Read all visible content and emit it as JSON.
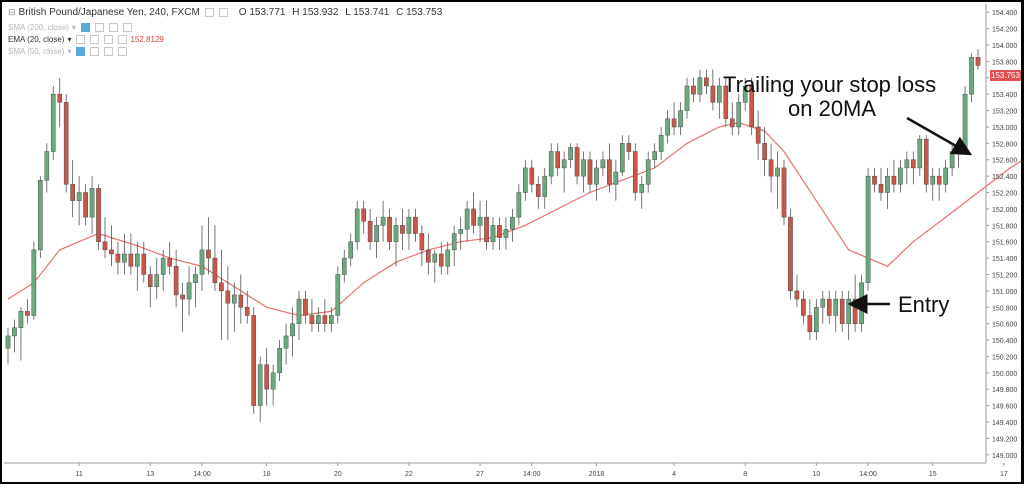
{
  "header": {
    "symbol": "British Pound/Japanese Yen, 240, FXCM",
    "open": "O 153.771",
    "high": "H 153.932",
    "low": "L 153.741",
    "close": "C 153.753",
    "ind1_label": "SMA (200, close)",
    "ind2_label": "EMA (20, close)",
    "ind2_value": "152.8129",
    "ind3_label": "SMA (50, close)"
  },
  "price_badge": "153.753",
  "annotations": {
    "trailing_line1": "Trailing your stop loss",
    "trailing_line2": "on 20MA",
    "entry": "Entry"
  },
  "colors": {
    "up": "#6aa97d",
    "down": "#c8574a",
    "ema": "#e8706a",
    "badge": "#e05050"
  },
  "chart_data": {
    "type": "candlestick",
    "symbol": "GBPJPY",
    "timeframe": "240",
    "ylim": [
      148.9,
      154.5
    ],
    "yticks": [
      "154.400",
      "154.200",
      "154.000",
      "153.800",
      "153.600",
      "153.400",
      "153.200",
      "153.000",
      "152.800",
      "152.600",
      "152.400",
      "152.200",
      "152.000",
      "151.800",
      "151.600",
      "151.400",
      "151.200",
      "151.000",
      "150.800",
      "150.600",
      "150.400",
      "150.200",
      "150.000",
      "149.800",
      "149.600",
      "149.400",
      "149.200",
      "149.000"
    ],
    "xticks": [
      {
        "label": "11",
        "i": 11
      },
      {
        "label": "13",
        "i": 22
      },
      {
        "label": "14:00",
        "i": 30
      },
      {
        "label": "18",
        "i": 40
      },
      {
        "label": "20",
        "i": 51
      },
      {
        "label": "22",
        "i": 62
      },
      {
        "label": "27",
        "i": 73
      },
      {
        "label": "14:00",
        "i": 81
      },
      {
        "label": "2018",
        "i": 91
      },
      {
        "label": "4",
        "i": 103
      },
      {
        "label": "8",
        "i": 114
      },
      {
        "label": "10",
        "i": 125
      },
      {
        "label": "14:00",
        "i": 133
      },
      {
        "label": "15",
        "i": 143
      },
      {
        "label": "17",
        "i": 154
      },
      {
        "label": "14:00",
        "i": 162
      }
    ],
    "candles": [
      [
        150.3,
        150.55,
        150.1,
        150.45
      ],
      [
        150.45,
        150.65,
        150.25,
        150.55
      ],
      [
        150.55,
        150.8,
        150.15,
        150.75
      ],
      [
        150.75,
        150.9,
        150.6,
        150.7
      ],
      [
        150.7,
        151.6,
        150.65,
        151.5
      ],
      [
        151.5,
        152.4,
        151.4,
        152.35
      ],
      [
        152.35,
        152.8,
        152.2,
        152.7
      ],
      [
        152.7,
        153.5,
        152.6,
        153.4
      ],
      [
        153.4,
        153.6,
        153.0,
        153.3
      ],
      [
        153.3,
        153.4,
        152.2,
        152.3
      ],
      [
        152.3,
        152.6,
        151.9,
        152.1
      ],
      [
        152.1,
        152.4,
        151.8,
        152.2
      ],
      [
        152.2,
        152.3,
        151.8,
        151.9
      ],
      [
        151.9,
        152.4,
        151.7,
        152.25
      ],
      [
        152.25,
        152.3,
        151.5,
        151.6
      ],
      [
        151.6,
        151.9,
        151.4,
        151.5
      ],
      [
        151.5,
        151.8,
        151.3,
        151.45
      ],
      [
        151.45,
        151.6,
        151.2,
        151.35
      ],
      [
        151.35,
        151.7,
        151.2,
        151.45
      ],
      [
        151.45,
        151.7,
        151.2,
        151.3
      ],
      [
        151.3,
        151.6,
        151.0,
        151.45
      ],
      [
        151.45,
        151.6,
        151.1,
        151.2
      ],
      [
        151.2,
        151.3,
        150.8,
        151.05
      ],
      [
        151.05,
        151.4,
        150.9,
        151.2
      ],
      [
        151.2,
        151.5,
        151.0,
        151.4
      ],
      [
        151.4,
        151.6,
        151.2,
        151.3
      ],
      [
        151.3,
        151.5,
        150.8,
        150.95
      ],
      [
        150.95,
        151.1,
        150.5,
        150.9
      ],
      [
        150.9,
        151.3,
        150.7,
        151.1
      ],
      [
        151.1,
        151.3,
        150.8,
        151.2
      ],
      [
        151.2,
        151.8,
        151.0,
        151.5
      ],
      [
        151.5,
        151.9,
        151.2,
        151.4
      ],
      [
        151.4,
        151.8,
        151.0,
        151.1
      ],
      [
        151.1,
        151.5,
        150.4,
        151.0
      ],
      [
        151.0,
        151.3,
        150.4,
        150.85
      ],
      [
        150.85,
        151.1,
        150.5,
        150.95
      ],
      [
        150.95,
        151.2,
        150.6,
        150.8
      ],
      [
        150.8,
        151.0,
        150.6,
        150.7
      ],
      [
        150.7,
        150.8,
        149.5,
        149.6
      ],
      [
        149.6,
        150.2,
        149.4,
        150.1
      ],
      [
        150.1,
        150.3,
        149.6,
        149.8
      ],
      [
        149.8,
        150.1,
        149.6,
        150.0
      ],
      [
        150.0,
        150.4,
        149.9,
        150.3
      ],
      [
        150.3,
        150.6,
        150.1,
        150.45
      ],
      [
        150.45,
        150.8,
        150.2,
        150.6
      ],
      [
        150.6,
        151.0,
        150.4,
        150.9
      ],
      [
        150.9,
        151.0,
        150.6,
        150.7
      ],
      [
        150.7,
        150.9,
        150.5,
        150.6
      ],
      [
        150.6,
        150.8,
        150.5,
        150.7
      ],
      [
        150.7,
        150.9,
        150.5,
        150.6
      ],
      [
        150.6,
        150.8,
        150.5,
        150.7
      ],
      [
        150.7,
        151.3,
        150.6,
        151.2
      ],
      [
        151.2,
        151.5,
        151.1,
        151.4
      ],
      [
        151.4,
        151.7,
        151.3,
        151.6
      ],
      [
        151.6,
        152.1,
        151.5,
        152.0
      ],
      [
        152.0,
        152.1,
        151.7,
        151.85
      ],
      [
        151.85,
        152.0,
        151.5,
        151.6
      ],
      [
        151.6,
        151.9,
        151.4,
        151.8
      ],
      [
        151.8,
        152.1,
        151.6,
        151.9
      ],
      [
        151.9,
        152.0,
        151.5,
        151.6
      ],
      [
        151.6,
        151.9,
        151.3,
        151.8
      ],
      [
        151.8,
        152.0,
        151.5,
        151.7
      ],
      [
        151.7,
        152.0,
        151.5,
        151.9
      ],
      [
        151.9,
        152.0,
        151.6,
        151.7
      ],
      [
        151.7,
        151.8,
        151.3,
        151.5
      ],
      [
        151.5,
        151.7,
        151.2,
        151.35
      ],
      [
        151.35,
        151.5,
        151.1,
        151.45
      ],
      [
        151.45,
        151.6,
        151.2,
        151.3
      ],
      [
        151.3,
        151.6,
        151.2,
        151.5
      ],
      [
        151.5,
        151.8,
        151.3,
        151.7
      ],
      [
        151.7,
        151.9,
        151.5,
        151.75
      ],
      [
        151.75,
        152.1,
        151.6,
        152.0
      ],
      [
        152.0,
        152.2,
        151.7,
        151.8
      ],
      [
        151.8,
        152.1,
        151.6,
        151.9
      ],
      [
        151.9,
        152.1,
        151.5,
        151.6
      ],
      [
        151.6,
        151.9,
        151.5,
        151.8
      ],
      [
        151.8,
        151.9,
        151.5,
        151.65
      ],
      [
        151.65,
        151.9,
        151.5,
        151.75
      ],
      [
        151.75,
        152.0,
        151.6,
        151.9
      ],
      [
        151.9,
        152.3,
        151.8,
        152.2
      ],
      [
        152.2,
        152.6,
        152.1,
        152.5
      ],
      [
        152.5,
        152.6,
        152.2,
        152.3
      ],
      [
        152.3,
        152.4,
        152.0,
        152.15
      ],
      [
        152.15,
        152.5,
        152.0,
        152.4
      ],
      [
        152.4,
        152.8,
        152.3,
        152.7
      ],
      [
        152.7,
        152.8,
        152.4,
        152.5
      ],
      [
        152.5,
        152.7,
        152.2,
        152.6
      ],
      [
        152.6,
        152.8,
        152.5,
        152.75
      ],
      [
        152.75,
        152.8,
        152.3,
        152.4
      ],
      [
        152.4,
        152.7,
        152.2,
        152.6
      ],
      [
        152.6,
        152.7,
        152.2,
        152.3
      ],
      [
        152.3,
        152.6,
        152.1,
        152.5
      ],
      [
        152.5,
        152.7,
        152.4,
        152.6
      ],
      [
        152.6,
        152.8,
        152.2,
        152.3
      ],
      [
        152.3,
        152.6,
        152.1,
        152.45
      ],
      [
        152.45,
        152.9,
        152.4,
        152.8
      ],
      [
        152.8,
        152.9,
        152.6,
        152.7
      ],
      [
        152.7,
        152.8,
        152.1,
        152.2
      ],
      [
        152.2,
        152.4,
        152.0,
        152.3
      ],
      [
        152.3,
        152.7,
        152.2,
        152.6
      ],
      [
        152.6,
        152.8,
        152.5,
        152.7
      ],
      [
        152.7,
        153.0,
        152.6,
        152.9
      ],
      [
        152.9,
        153.2,
        152.8,
        153.1
      ],
      [
        153.1,
        153.3,
        152.9,
        153.0
      ],
      [
        153.0,
        153.3,
        152.9,
        153.2
      ],
      [
        153.2,
        153.6,
        153.1,
        153.5
      ],
      [
        153.5,
        153.6,
        153.3,
        153.4
      ],
      [
        153.4,
        153.7,
        153.3,
        153.6
      ],
      [
        153.6,
        153.7,
        153.4,
        153.5
      ],
      [
        153.5,
        153.7,
        153.2,
        153.3
      ],
      [
        153.3,
        153.6,
        153.1,
        153.5
      ],
      [
        153.5,
        153.6,
        153.0,
        153.1
      ],
      [
        153.1,
        153.3,
        152.9,
        153.0
      ],
      [
        153.0,
        153.4,
        152.9,
        153.3
      ],
      [
        153.3,
        153.6,
        153.2,
        153.5
      ],
      [
        153.5,
        153.6,
        152.9,
        153.0
      ],
      [
        153.0,
        153.2,
        152.6,
        152.8
      ],
      [
        152.8,
        153.0,
        152.4,
        152.6
      ],
      [
        152.6,
        152.8,
        152.2,
        152.4
      ],
      [
        152.4,
        152.7,
        152.0,
        152.5
      ],
      [
        152.5,
        152.6,
        151.8,
        151.9
      ],
      [
        151.9,
        152.0,
        150.9,
        151.0
      ],
      [
        151.0,
        151.2,
        150.8,
        150.9
      ],
      [
        150.9,
        151.0,
        150.6,
        150.7
      ],
      [
        150.7,
        150.9,
        150.4,
        150.5
      ],
      [
        150.5,
        150.9,
        150.4,
        150.8
      ],
      [
        150.8,
        151.0,
        150.6,
        150.9
      ],
      [
        150.9,
        151.0,
        150.6,
        150.7
      ],
      [
        150.7,
        151.0,
        150.5,
        150.9
      ],
      [
        150.9,
        151.0,
        150.5,
        150.6
      ],
      [
        150.6,
        151.0,
        150.4,
        150.9
      ],
      [
        150.9,
        151.2,
        150.5,
        150.6
      ],
      [
        150.6,
        151.2,
        150.5,
        151.1
      ],
      [
        151.1,
        152.5,
        151.0,
        152.4
      ],
      [
        152.4,
        152.5,
        152.2,
        152.3
      ],
      [
        152.3,
        152.5,
        152.1,
        152.2
      ],
      [
        152.2,
        152.5,
        152.0,
        152.4
      ],
      [
        152.4,
        152.6,
        152.2,
        152.3
      ],
      [
        152.3,
        152.6,
        152.2,
        152.5
      ],
      [
        152.5,
        152.7,
        152.3,
        152.6
      ],
      [
        152.6,
        152.7,
        152.3,
        152.5
      ],
      [
        152.5,
        152.9,
        152.4,
        152.85
      ],
      [
        152.85,
        152.9,
        152.2,
        152.3
      ],
      [
        152.3,
        152.5,
        152.1,
        152.4
      ],
      [
        152.4,
        152.5,
        152.1,
        152.3
      ],
      [
        152.3,
        152.6,
        152.2,
        152.5
      ],
      [
        152.5,
        152.8,
        152.4,
        152.7
      ],
      [
        152.7,
        152.8,
        152.5,
        152.75
      ],
      [
        152.75,
        153.5,
        152.7,
        153.4
      ],
      [
        153.4,
        153.9,
        153.3,
        153.85
      ],
      [
        153.85,
        153.95,
        153.7,
        153.75
      ]
    ],
    "ema": [
      [
        0,
        150.9
      ],
      [
        4,
        151.1
      ],
      [
        8,
        151.5
      ],
      [
        14,
        151.7
      ],
      [
        20,
        151.55
      ],
      [
        25,
        151.4
      ],
      [
        30,
        151.3
      ],
      [
        35,
        151.05
      ],
      [
        40,
        150.8
      ],
      [
        45,
        150.7
      ],
      [
        50,
        150.75
      ],
      [
        55,
        151.1
      ],
      [
        60,
        151.35
      ],
      [
        65,
        151.5
      ],
      [
        70,
        151.6
      ],
      [
        75,
        151.65
      ],
      [
        80,
        151.8
      ],
      [
        85,
        152.0
      ],
      [
        90,
        152.2
      ],
      [
        95,
        152.35
      ],
      [
        100,
        152.5
      ],
      [
        105,
        152.8
      ],
      [
        110,
        153.0
      ],
      [
        113,
        153.05
      ],
      [
        117,
        152.95
      ],
      [
        120,
        152.7
      ],
      [
        125,
        152.1
      ],
      [
        130,
        151.5
      ],
      [
        136,
        151.3
      ],
      [
        140,
        151.6
      ],
      [
        145,
        151.9
      ],
      [
        150,
        152.2
      ],
      [
        155,
        152.5
      ],
      [
        160,
        152.75
      ],
      [
        162,
        152.85
      ]
    ]
  }
}
